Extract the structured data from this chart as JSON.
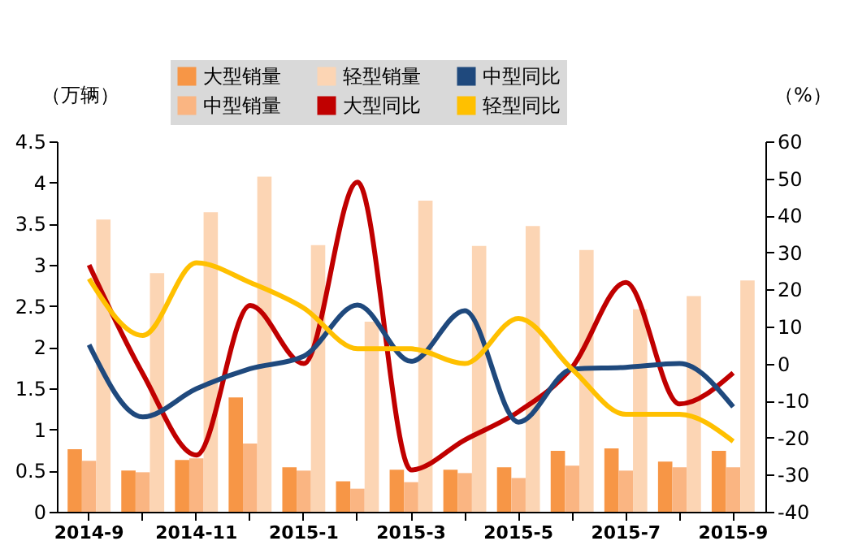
{
  "chart_data": {
    "type": "bar",
    "ylabel": "（万辆）",
    "y2label": "（%）",
    "categories": [
      "2014-9",
      null,
      "2014-11",
      null,
      "2015-1",
      null,
      "2015-3",
      null,
      "2015-5",
      null,
      "2015-7",
      null,
      "2015-9"
    ],
    "series": [
      {
        "name": "大型销量",
        "color": "#f79646",
        "values": [
          0.76,
          0.5,
          0.63,
          1.39,
          0.54,
          0.37,
          0.51,
          0.51,
          0.54,
          0.74,
          0.77,
          0.61,
          0.74
        ]
      },
      {
        "name": "中型销量",
        "color": "#fab582",
        "values": [
          0.62,
          0.48,
          0.65,
          0.83,
          0.5,
          0.28,
          0.36,
          0.47,
          0.41,
          0.56,
          0.5,
          0.54,
          0.54
        ]
      },
      {
        "name": "轻型销量",
        "color": "#fcd5b4",
        "values": [
          3.55,
          2.9,
          3.64,
          4.07,
          3.24,
          2.31,
          3.78,
          3.23,
          3.47,
          3.18,
          2.46,
          2.62,
          2.81
        ]
      },
      {
        "name": "大型同比",
        "color": "#c00000",
        "type": "line",
        "axis": "y2",
        "values": [
          26.6,
          -2.7,
          -24.7,
          15.7,
          0,
          49,
          -28.7,
          -20.6,
          -13,
          -1,
          21.9,
          -10.9,
          -2.5
        ]
      },
      {
        "name": "中型同比",
        "color": "#1f497d",
        "type": "line",
        "axis": "y2",
        "values": [
          5.1,
          -14.4,
          -6.8,
          -1.4,
          2,
          15.8,
          0.6,
          14.3,
          -15.8,
          -1.5,
          -1,
          0,
          -11.7
        ]
      },
      {
        "name": "轻型同比",
        "color": "#ffc000",
        "type": "line",
        "axis": "y2",
        "values": [
          22.9,
          7.6,
          27.2,
          21.9,
          15,
          4,
          4,
          0,
          12.2,
          -1.5,
          -13.7,
          -13.7,
          -21
        ]
      }
    ],
    "ylim": [
      0,
      4.5
    ],
    "yticks": [
      0,
      0.5,
      1,
      1.5,
      2,
      2.5,
      3,
      3.5,
      4,
      4.5
    ],
    "y2lim": [
      -40,
      60
    ],
    "y2ticks": [
      -40,
      -30,
      -20,
      -10,
      0,
      10,
      20,
      30,
      40,
      50,
      60
    ],
    "legend": "top",
    "grid": false,
    "marker": "none",
    "line_style": "solid"
  }
}
